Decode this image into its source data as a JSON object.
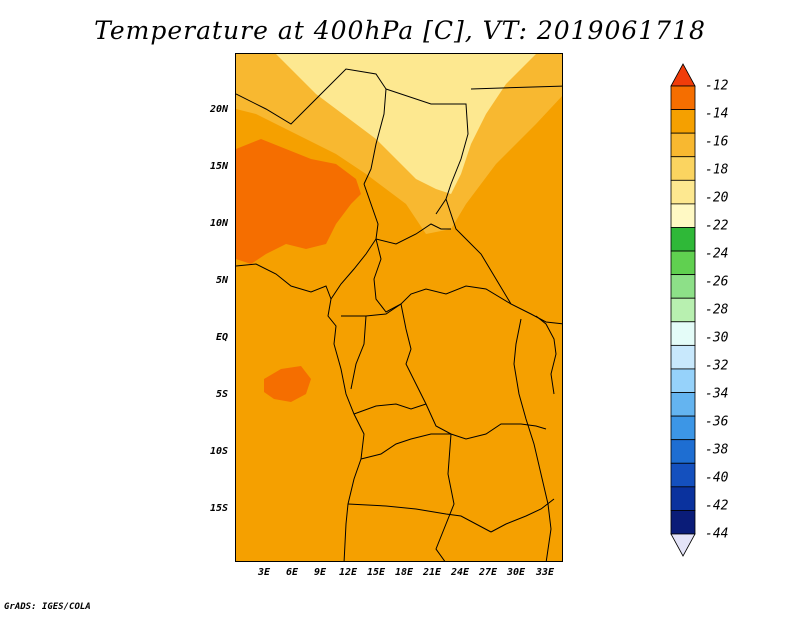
{
  "title": "Temperature at 400hPa [C], VT: 2019061718",
  "footer": "GrADS: IGES/COLA",
  "lat_labels": [
    "20N",
    "15N",
    "10N",
    "5N",
    "EQ",
    "5S",
    "10S",
    "15S"
  ],
  "lat_values": [
    20,
    15,
    10,
    5,
    0,
    -5,
    -10,
    -15
  ],
  "lon_labels": [
    "3E",
    "6E",
    "9E",
    "12E",
    "15E",
    "18E",
    "21E",
    "24E",
    "27E",
    "30E",
    "33E"
  ],
  "lon_values": [
    3,
    6,
    9,
    12,
    15,
    18,
    21,
    24,
    27,
    30,
    33
  ],
  "colorbar": {
    "labels": [
      "-12",
      "-14",
      "-16",
      "-18",
      "-20",
      "-22",
      "-24",
      "-26",
      "-28",
      "-30",
      "-32",
      "-34",
      "-36",
      "-38",
      "-40",
      "-42",
      "-44"
    ],
    "colors": [
      "#f03c0a",
      "#f56e00",
      "#f5a000",
      "#f8b830",
      "#fbd460",
      "#fde890",
      "#fff9c4",
      "#2fb838",
      "#60d050",
      "#8de088",
      "#b8f0b0",
      "#e4fcf8",
      "#c8e8fc",
      "#96d2fa",
      "#64b4f0",
      "#3c96e6",
      "#1e6ed2",
      "#1450be",
      "#0a329e",
      "#0a1c78",
      "#e4e4f8"
    ]
  },
  "map": {
    "background_color": "#f5a000",
    "regions": [
      {
        "name": "sahara-north",
        "color": "#f8b830"
      },
      {
        "name": "sahara-pale",
        "color": "#fde890"
      },
      {
        "name": "sahel-warm",
        "color": "#f56e00"
      },
      {
        "name": "gulf-warm-spot",
        "color": "#f56e00"
      }
    ]
  }
}
